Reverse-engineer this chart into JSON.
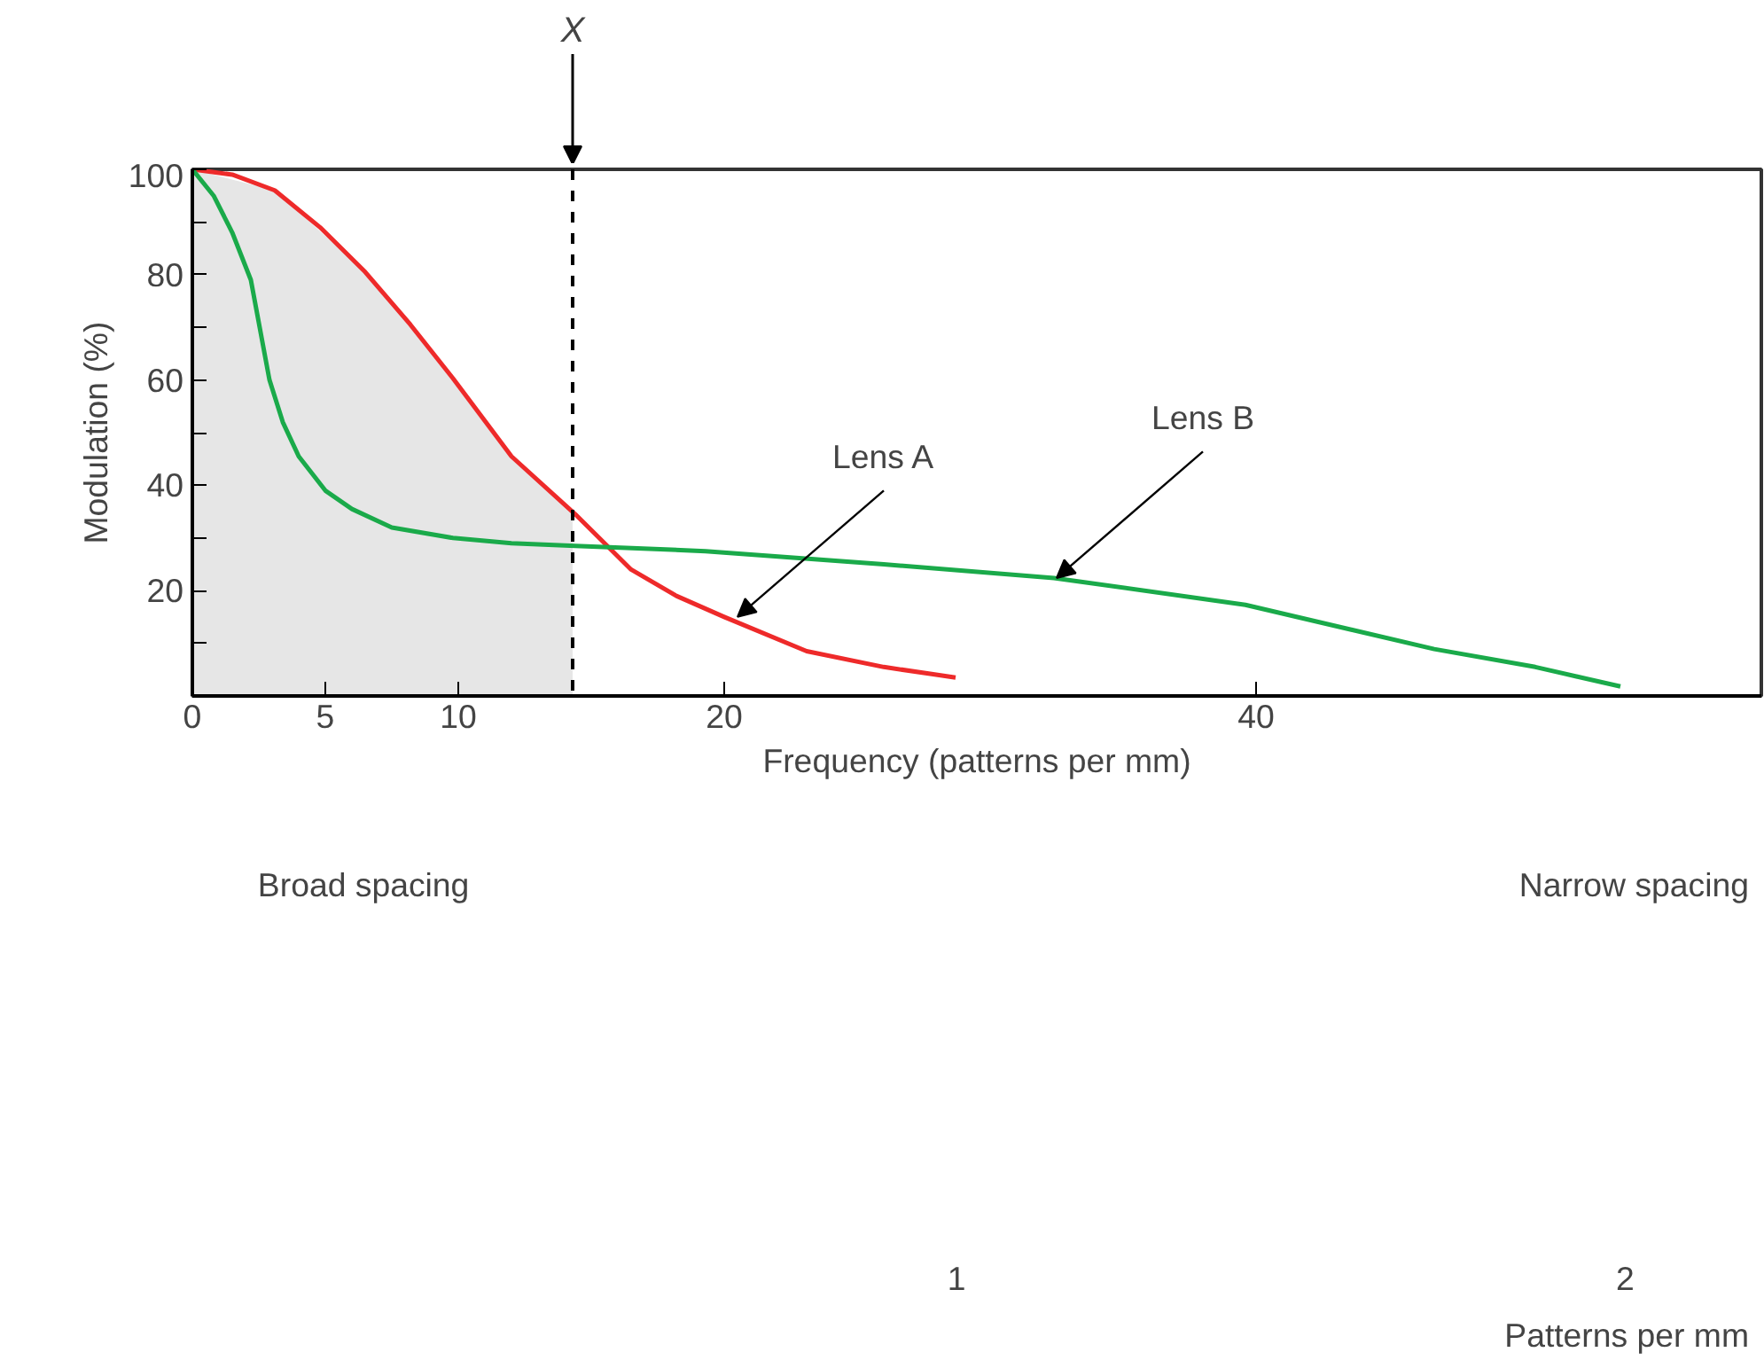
{
  "chart_data": {
    "type": "line",
    "xlabel": "Frequency (patterns per mm)",
    "ylabel": "Modulation (%)",
    "xlim": [
      0,
      59
    ],
    "ylim": [
      0,
      100
    ],
    "xticks": [
      0,
      5,
      10,
      20,
      40
    ],
    "yticks": [
      {
        "value": 10,
        "label": null
      },
      20,
      {
        "value": 30,
        "label": null
      },
      40,
      {
        "value": 50,
        "label": null
      },
      60,
      {
        "value": 70,
        "label": null
      },
      80,
      {
        "value": 90,
        "label": null
      },
      100
    ],
    "grid": false,
    "line_style": "solid",
    "series": [
      {
        "type": "area",
        "color": "#e6e6e6",
        "x": [
          0,
          3.1,
          6.5,
          9.8,
          12,
          14.3
        ],
        "values": [
          100,
          96,
          80.5,
          60.3,
          45.5,
          35
        ]
      },
      {
        "color": "#ee2a2a",
        "x": [
          0,
          1.5,
          3.1,
          4.8,
          6.5,
          8.2,
          9.8,
          12,
          14.4,
          16.5,
          18.2,
          20,
          23.1,
          26,
          28.7
        ],
        "values": [
          100,
          99,
          96,
          89,
          80.5,
          70.5,
          60.3,
          45.5,
          34.5,
          24,
          19,
          15,
          8.5,
          5.5,
          3.5
        ]
      },
      {
        "color": "#1aaa4a",
        "x": [
          0,
          0.8,
          1.5,
          2.2,
          2.9,
          3.4,
          4,
          5,
          6,
          7.5,
          9.8,
          12,
          14.4,
          19.3,
          26,
          32.4,
          39.6,
          46.7,
          50.5,
          53.7
        ],
        "values": [
          100,
          95,
          88,
          79,
          60,
          52,
          45.5,
          39,
          35.5,
          32,
          30,
          29,
          28.5,
          27.5,
          25,
          22.4,
          17.3,
          8.9,
          5.5,
          1.8
        ]
      }
    ],
    "annotations": [
      {
        "text": "Lens A",
        "x": 20.5,
        "y": 15
      },
      {
        "text": "Lens B",
        "x": 32.5,
        "y": 22.4
      },
      "Broad spacing",
      "Narrow spacing",
      "1",
      "2",
      "Patterns per mm"
    ],
    "ref_lines": [
      {
        "axis": "x",
        "value": 14.3,
        "label": "X",
        "line_style": "dashed",
        "color": "#000000"
      }
    ]
  }
}
